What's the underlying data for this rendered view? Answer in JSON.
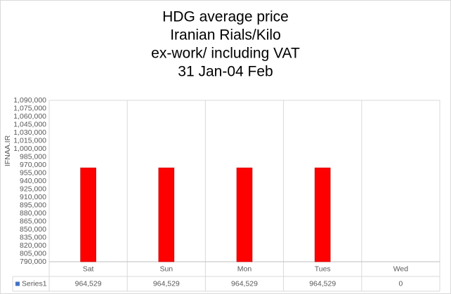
{
  "chart_data": {
    "type": "bar",
    "title": [
      "HDG average price",
      "Iranian Rials/Kilo",
      "ex-work/ including VAT",
      "31 Jan-04 Feb"
    ],
    "watermark": "IFNAA.IR",
    "categories": [
      "Sat",
      "Sun",
      "Mon",
      "Tues",
      "Wed"
    ],
    "series": [
      {
        "name": "Series1",
        "color": "#ff0000",
        "legend_color": "#4472c4",
        "values": [
          964529,
          964529,
          964529,
          964529,
          0
        ],
        "value_labels": [
          "964,529",
          "964,529",
          "964,529",
          "964,529",
          "0"
        ]
      }
    ],
    "ylim": [
      790000,
      1090000
    ],
    "yticks": [
      {
        "value": 790000,
        "label": "790,000"
      },
      {
        "value": 805000,
        "label": "805,000"
      },
      {
        "value": 820000,
        "label": "820,000"
      },
      {
        "value": 835000,
        "label": "835,000"
      },
      {
        "value": 850000,
        "label": "850,000"
      },
      {
        "value": 865000,
        "label": "865,000"
      },
      {
        "value": 880000,
        "label": "880,000"
      },
      {
        "value": 895000,
        "label": "895,000"
      },
      {
        "value": 910000,
        "label": "910,000"
      },
      {
        "value": 925000,
        "label": "925,000"
      },
      {
        "value": 940000,
        "label": "940,000"
      },
      {
        "value": 955000,
        "label": "955,000"
      },
      {
        "value": 970000,
        "label": "970,000"
      },
      {
        "value": 985000,
        "label": "985,000"
      },
      {
        "value": 1000000,
        "label": "1,000,000"
      },
      {
        "value": 1015000,
        "label": "1,015,000"
      },
      {
        "value": 1030000,
        "label": "1,030,000"
      },
      {
        "value": 1045000,
        "label": "1,045,000"
      },
      {
        "value": 1060000,
        "label": "1,060,000"
      },
      {
        "value": 1075000,
        "label": "1,075,000"
      },
      {
        "value": 1090000,
        "label": "1,090,000"
      }
    ],
    "grid": false,
    "data_table": true
  }
}
